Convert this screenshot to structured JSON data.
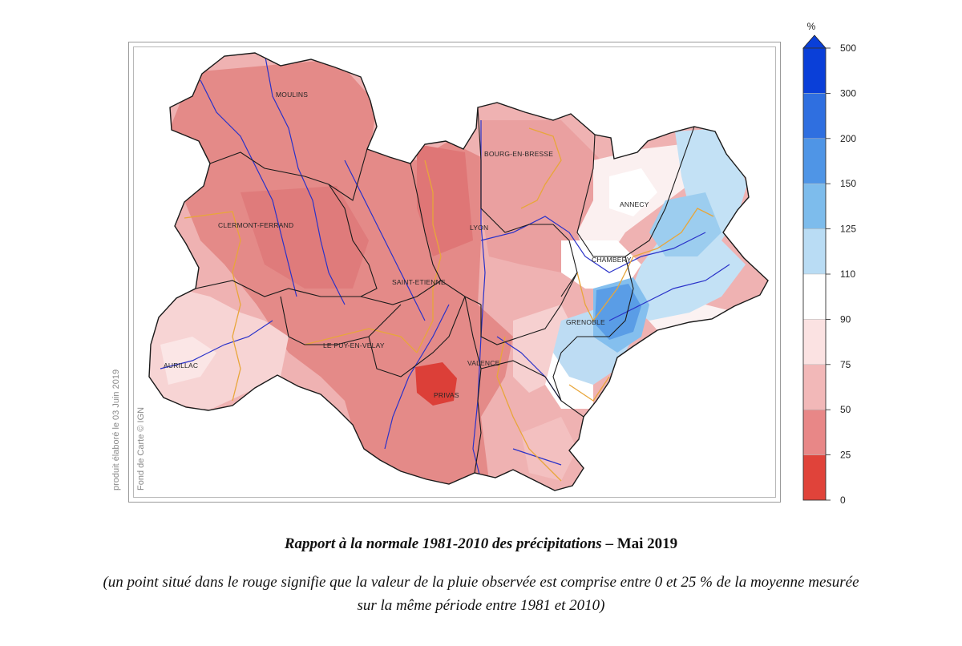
{
  "map": {
    "cities": [
      {
        "name": "MOULINS"
      },
      {
        "name": "BOURG-EN-BRESSE"
      },
      {
        "name": "CLERMONT-FERRAND"
      },
      {
        "name": "LYON"
      },
      {
        "name": "ANNECY"
      },
      {
        "name": "CHAMBERY"
      },
      {
        "name": "SAINT-ETIENNE"
      },
      {
        "name": "GRENOBLE"
      },
      {
        "name": "LE PUY-EN-VELAY"
      },
      {
        "name": "AURILLAC"
      },
      {
        "name": "VALENCE"
      },
      {
        "name": "PRIVAS"
      }
    ],
    "credit_produced": "produit élaboré le 03 Juin 2019",
    "credit_basemap": "Fond de Carte © IGN"
  },
  "legend": {
    "unit": "%",
    "ticks": [
      "500",
      "300",
      "200",
      "150",
      "125",
      "110",
      "90",
      "75",
      "50",
      "25",
      "0"
    ],
    "colors": [
      "#0a3fd8",
      "#2f6fe0",
      "#4f95e6",
      "#7dbcec",
      "#b9dcf4",
      "#ffffff",
      "#fbe2e2",
      "#f2b8b8",
      "#e88787",
      "#e0433a"
    ]
  },
  "caption": {
    "title_italic": "Rapport à la normale 1981-2010 des précipitations",
    "title_bold": " – Mai 2019",
    "note_line1": "(un point situé dans le rouge signifie que la valeur de la pluie observée est comprise entre 0 et 25 % de la moyenne mesurée",
    "note_line2": "sur la même période entre 1981 et 2010)"
  }
}
